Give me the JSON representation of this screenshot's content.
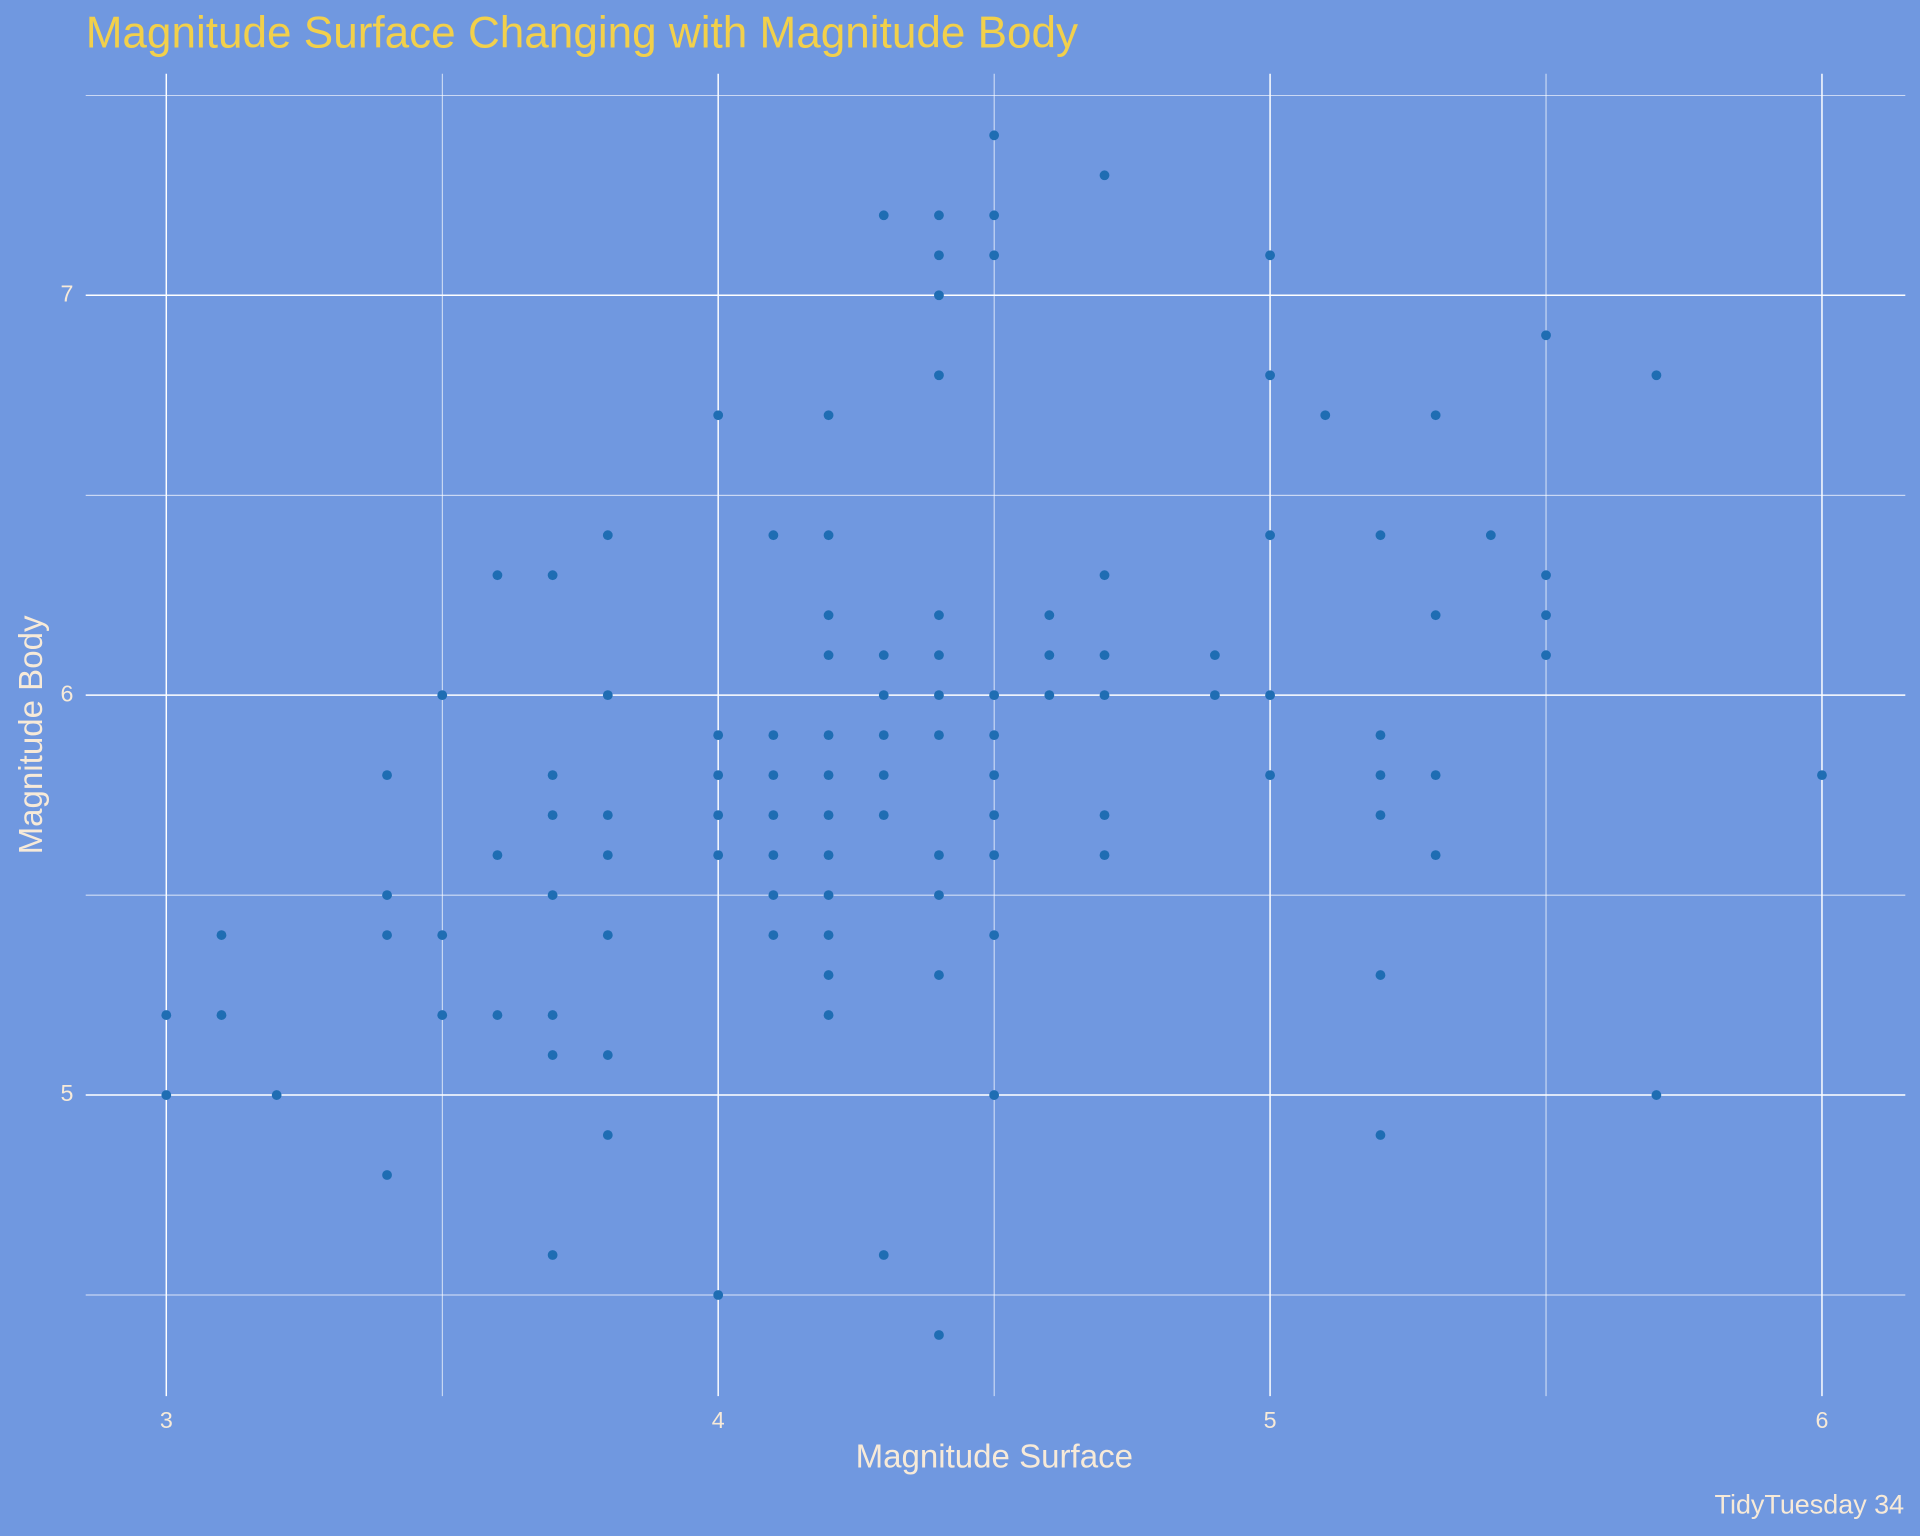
{
  "chart_data": {
    "type": "scatter",
    "title": "Magnitude Surface Changing with Magnitude Body",
    "x_label": "Magnitude Surface",
    "y_label": "Magnitude Body",
    "caption": "TidyTuesday 34",
    "color": "#1f6db3",
    "x": [
      3,
      3,
      3.1,
      3.1,
      3.2,
      3.4,
      3.4,
      3.4,
      3.4,
      3.5,
      3.5,
      3.5,
      3.6,
      3.6,
      3.6,
      3.7,
      3.7,
      3.7,
      3.7,
      3.7,
      3.7,
      3.7,
      3.8,
      3.8,
      3.8,
      3.8,
      3.8,
      3.8,
      3.8,
      4,
      4,
      4,
      4,
      4,
      4,
      4.1,
      4.1,
      4.1,
      4.1,
      4.1,
      4.1,
      4.1,
      4.2,
      4.2,
      4.2,
      4.2,
      4.2,
      4.2,
      4.2,
      4.2,
      4.2,
      4.2,
      4.2,
      4.2,
      4.3,
      4.3,
      4.3,
      4.3,
      4.3,
      4.3,
      4.3,
      4.4,
      4.4,
      4.4,
      4.4,
      4.4,
      4.4,
      4.4,
      4.4,
      4.4,
      4.4,
      4.4,
      4.4,
      4.5,
      4.5,
      4.5,
      4.5,
      4.5,
      4.5,
      4.5,
      4.5,
      4.5,
      4.5,
      4.6,
      4.6,
      4.6,
      4.7,
      4.7,
      4.7,
      4.7,
      4.7,
      4.7,
      4.9,
      4.9,
      5,
      5,
      5,
      5,
      5,
      5.1,
      5.2,
      5.2,
      5.2,
      5.2,
      5.2,
      5.2,
      5.3,
      5.3,
      5.3,
      5.3,
      5.4,
      5.5,
      5.5,
      5.5,
      5.5,
      5.7,
      5.7,
      6
    ],
    "y": [
      5.2,
      5,
      5.4,
      5.2,
      5,
      5.8,
      5.5,
      5.4,
      4.8,
      6,
      5.4,
      5.2,
      6.3,
      5.6,
      5.2,
      6.3,
      5.8,
      5.7,
      5.5,
      5.2,
      5.1,
      4.6,
      6.4,
      6,
      5.7,
      5.6,
      5.4,
      5.1,
      4.9,
      6.7,
      5.9,
      5.8,
      5.7,
      5.6,
      4.5,
      6.4,
      5.9,
      5.8,
      5.7,
      5.6,
      5.5,
      5.4,
      6.7,
      6.4,
      6.2,
      6.1,
      5.9,
      5.8,
      5.7,
      5.6,
      5.5,
      5.4,
      5.3,
      5.2,
      7.2,
      6.1,
      6,
      5.9,
      5.8,
      5.7,
      4.6,
      7.2,
      7.1,
      7,
      6.8,
      6.2,
      6.1,
      6,
      5.9,
      5.6,
      5.5,
      5.3,
      4.4,
      7.4,
      7.2,
      7.1,
      6,
      5.9,
      5.8,
      5.7,
      5.6,
      5.4,
      5,
      6.2,
      6.1,
      6,
      7.3,
      6.3,
      6.1,
      6,
      5.7,
      5.6,
      6.1,
      6,
      7.1,
      6.8,
      6.4,
      6,
      5.8,
      6.7,
      6.4,
      5.9,
      5.8,
      5.7,
      5.3,
      4.9,
      6.7,
      6.2,
      5.8,
      5.6,
      6.4,
      6.9,
      6.3,
      6.2,
      6.1,
      6.8,
      5,
      5.8
    ],
    "xlim": [
      2.854,
      6.151
    ],
    "ylim": [
      4.247,
      7.554
    ],
    "xticks": [
      3,
      4,
      5,
      6
    ],
    "yticks": [
      5,
      6,
      7
    ],
    "minor_xticks": [
      3.5,
      4.5,
      5.5
    ],
    "minor_yticks": [
      4.5,
      5.5,
      6.5,
      7.5
    ],
    "grid": true
  }
}
